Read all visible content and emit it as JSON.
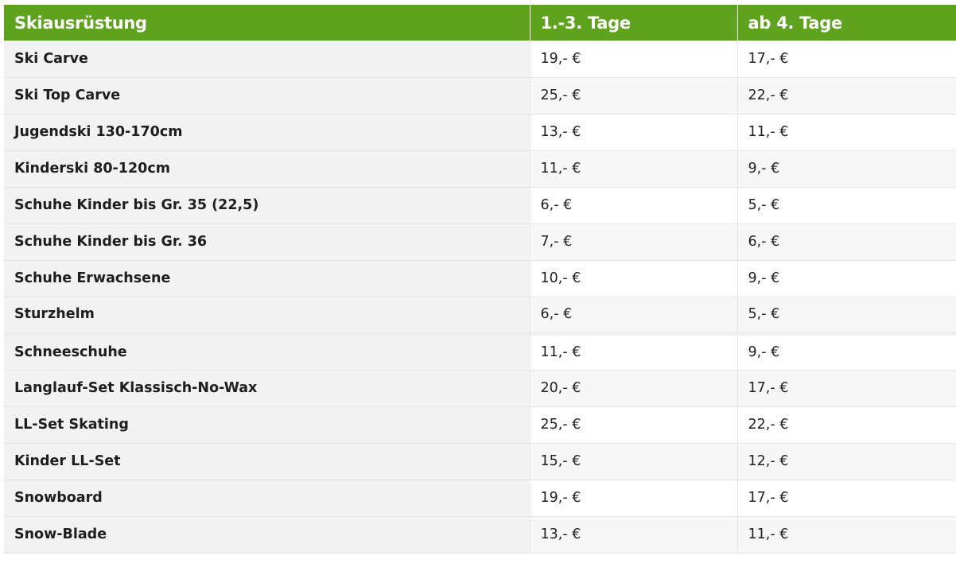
{
  "table": {
    "headers": [
      "Skiausrüstung",
      "1.-3. Tage",
      "ab 4. Tage"
    ],
    "rows": [
      {
        "item": "Ski Carve",
        "p1": "19,- €",
        "p2": "17,- €"
      },
      {
        "item": "Ski Top Carve",
        "p1": "25,- €",
        "p2": "22,- €"
      },
      {
        "item": "Jugendski 130-170cm",
        "p1": "13,- €",
        "p2": "11,- €"
      },
      {
        "item": "Kinderski 80-120cm",
        "p1": "11,- €",
        "p2": "9,- €"
      },
      {
        "item": "Schuhe Kinder bis Gr. 35 (22,5)",
        "p1": "6,- €",
        "p2": "5,- €"
      },
      {
        "item": "Schuhe Kinder bis Gr. 36",
        "p1": "7,- €",
        "p2": "6,- €"
      },
      {
        "item": "Schuhe Erwachsene",
        "p1": "10,- €",
        "p2": "9,- €"
      },
      {
        "item": "Sturzhelm",
        "p1": "6,- €",
        "p2": "5,- €"
      },
      {
        "item": "Schneeschuhe",
        "p1": "11,- €",
        "p2": "9,- €"
      },
      {
        "item": "Langlauf-Set Klassisch-No-Wax",
        "p1": "20,- €",
        "p2": "17,- €"
      },
      {
        "item": "LL-Set Skating",
        "p1": "25,- €",
        "p2": "22,- €"
      },
      {
        "item": "Kinder LL-Set",
        "p1": "15,- €",
        "p2": "12,- €"
      },
      {
        "item": "Snowboard",
        "p1": "19,- €",
        "p2": "17,- €"
      },
      {
        "item": "Snow-Blade",
        "p1": "13,- €",
        "p2": "11,- €"
      }
    ]
  },
  "colors": {
    "header_bg": "#5fa21e",
    "header_text": "#ffffff",
    "item_cell_bg": "#f2f2f2"
  }
}
